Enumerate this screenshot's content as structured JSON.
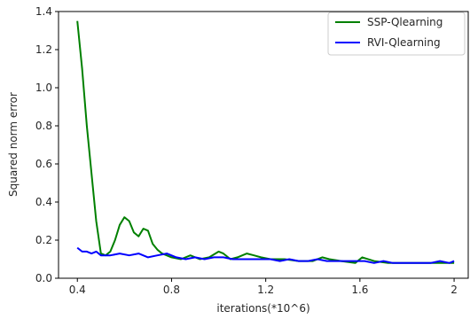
{
  "chart_data": {
    "type": "line",
    "title": "",
    "xlabel": "iterations(*10^6)",
    "ylabel": "Squared norm error",
    "xlim": [
      0.32,
      2.06
    ],
    "ylim": [
      0.0,
      1.4
    ],
    "xticks": [
      0.4,
      0.8,
      1.2,
      1.6,
      2.0
    ],
    "xtick_labels": [
      "0.4",
      "0.8",
      "1.2",
      "1.6",
      "2"
    ],
    "yticks": [
      0.0,
      0.2,
      0.4,
      0.6,
      0.8,
      1.0,
      1.2,
      1.4
    ],
    "ytick_labels": [
      "0.0",
      "0.2",
      "0.4",
      "0.6",
      "0.8",
      "1.0",
      "1.2",
      "1.4"
    ],
    "grid": false,
    "legend_position": "top-right",
    "series": [
      {
        "name": "SSP-Qlearning",
        "color": "#008000",
        "x": [
          0.4,
          0.42,
          0.44,
          0.46,
          0.48,
          0.5,
          0.52,
          0.54,
          0.56,
          0.58,
          0.6,
          0.62,
          0.64,
          0.66,
          0.68,
          0.7,
          0.72,
          0.74,
          0.76,
          0.8,
          0.84,
          0.88,
          0.92,
          0.96,
          1.0,
          1.02,
          1.05,
          1.08,
          1.12,
          1.15,
          1.18,
          1.22,
          1.28,
          1.34,
          1.4,
          1.44,
          1.47,
          1.52,
          1.58,
          1.61,
          1.66,
          1.72,
          1.78,
          1.84,
          1.9,
          1.95,
          2.0
        ],
        "y": [
          1.35,
          1.1,
          0.8,
          0.55,
          0.3,
          0.13,
          0.12,
          0.14,
          0.2,
          0.28,
          0.32,
          0.3,
          0.24,
          0.22,
          0.26,
          0.25,
          0.18,
          0.15,
          0.13,
          0.11,
          0.1,
          0.12,
          0.1,
          0.11,
          0.14,
          0.13,
          0.1,
          0.11,
          0.13,
          0.12,
          0.11,
          0.1,
          0.1,
          0.09,
          0.09,
          0.11,
          0.1,
          0.09,
          0.08,
          0.11,
          0.09,
          0.08,
          0.08,
          0.08,
          0.08,
          0.08,
          0.08
        ]
      },
      {
        "name": "RVI-Qlearning",
        "color": "#0000ff",
        "x": [
          0.4,
          0.42,
          0.44,
          0.46,
          0.48,
          0.5,
          0.54,
          0.58,
          0.62,
          0.66,
          0.7,
          0.74,
          0.78,
          0.82,
          0.86,
          0.9,
          0.94,
          0.98,
          1.02,
          1.06,
          1.1,
          1.14,
          1.18,
          1.22,
          1.26,
          1.3,
          1.34,
          1.38,
          1.42,
          1.46,
          1.5,
          1.54,
          1.58,
          1.62,
          1.66,
          1.7,
          1.74,
          1.78,
          1.82,
          1.86,
          1.9,
          1.94,
          1.98,
          2.0
        ],
        "y": [
          0.16,
          0.14,
          0.14,
          0.13,
          0.14,
          0.12,
          0.12,
          0.13,
          0.12,
          0.13,
          0.11,
          0.12,
          0.13,
          0.11,
          0.1,
          0.11,
          0.1,
          0.11,
          0.11,
          0.1,
          0.1,
          0.1,
          0.1,
          0.1,
          0.09,
          0.1,
          0.09,
          0.09,
          0.1,
          0.09,
          0.09,
          0.09,
          0.09,
          0.09,
          0.08,
          0.09,
          0.08,
          0.08,
          0.08,
          0.08,
          0.08,
          0.09,
          0.08,
          0.09
        ]
      }
    ]
  }
}
